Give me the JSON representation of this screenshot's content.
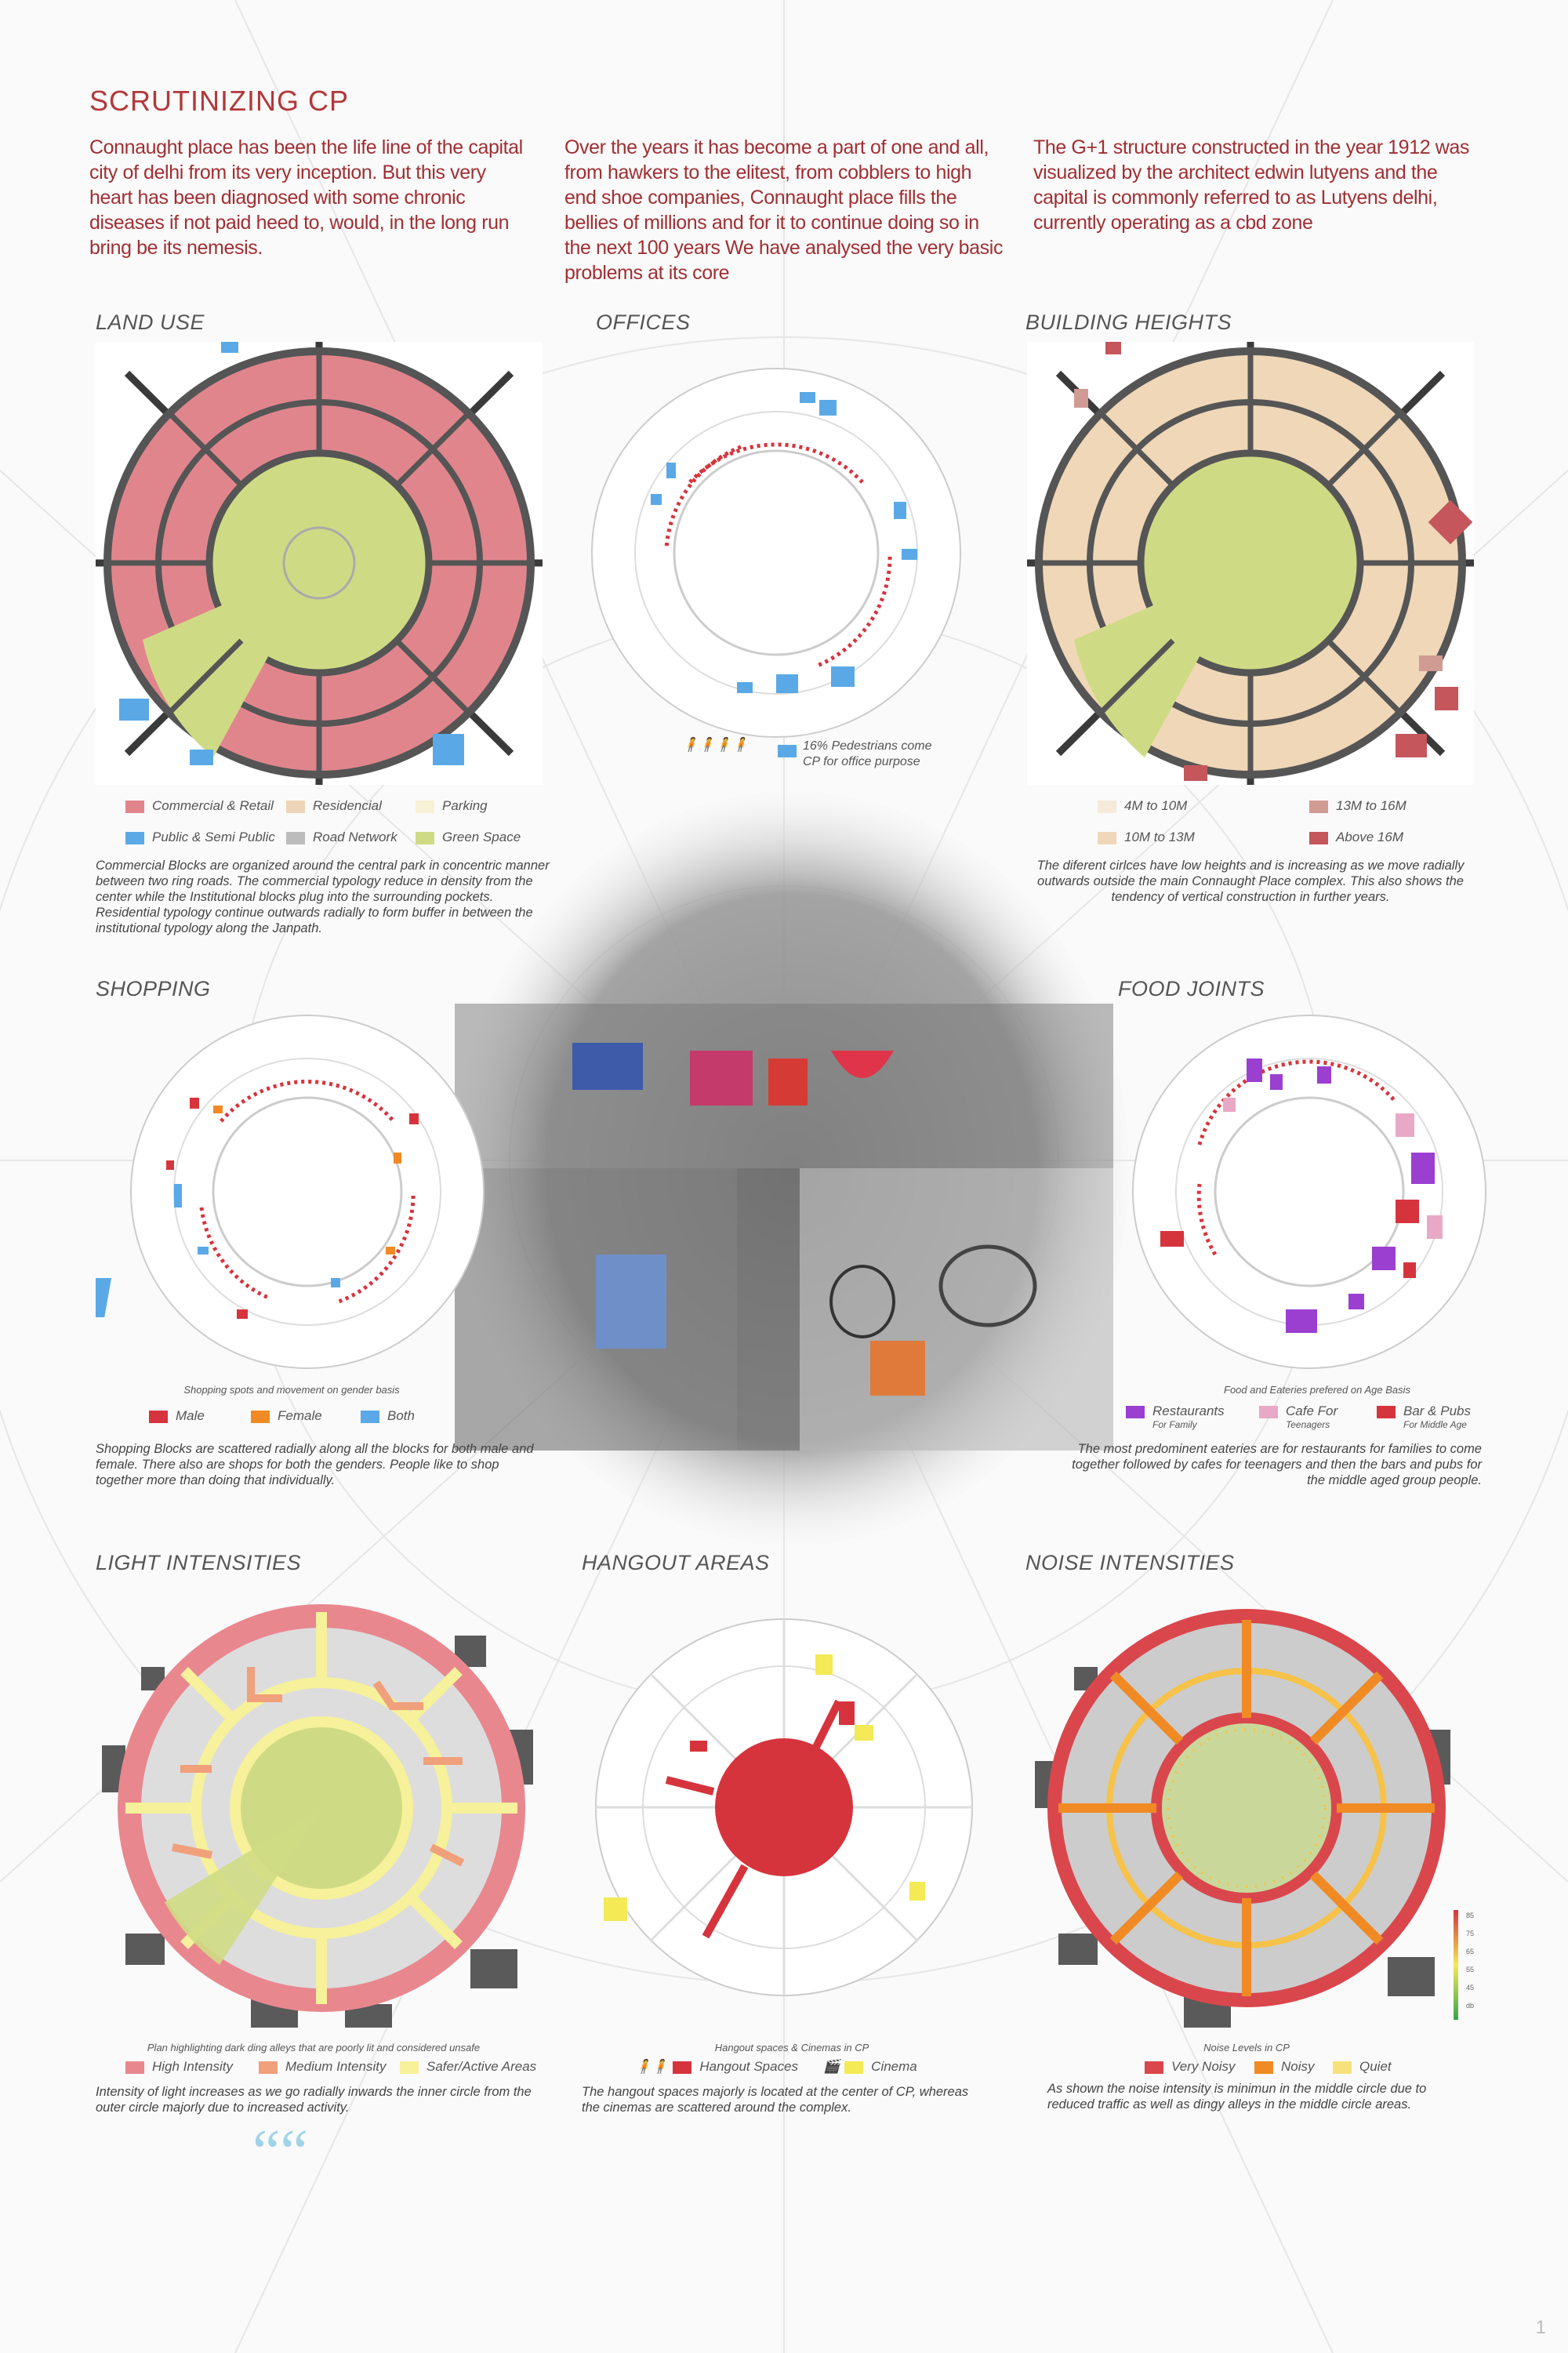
{
  "title": "SCRUTINIZING CP",
  "intro": [
    "Connaught place has been the life line of the capital city of delhi from its very inception. But this very heart has been diagnosed with some chronic diseases if not paid heed to, would, in the long run bring be its nemesis.",
    "Over the years it has become a part of one and all, from hawkers to the elitest, from cobblers to high end shoe companies, Connaught place fills the bellies of millions and  for it to continue doing so in the next 100 years We have analysed the very basic problems at its core",
    "The G+1 structure constructed in the year 1912 was visualized by the architect edwin lutyens and the capital is commonly referred to as Lutyens delhi, currently operating as a cbd zone"
  ],
  "sections": {
    "land_use": {
      "heading": "LAND USE",
      "legend": [
        {
          "label": "Commercial & Retail",
          "color": "#e1858d"
        },
        {
          "label": "Residencial",
          "color": "#eed5b8"
        },
        {
          "label": "Parking",
          "color": "#f7f1d6"
        },
        {
          "label": "Public & Semi Public",
          "color": "#5aa9e6"
        },
        {
          "label": "Road Network",
          "color": "#bcbcbc"
        },
        {
          "label": "Green Space",
          "color": "#cfdb84"
        }
      ],
      "description": "Commercial Blocks are organized around the central park in concentric manner between two ring roads. The commercial typology reduce in density from the center while the Institutional blocks plug into the surrounding pockets. Residential typology continue outwards radially to form buffer in between the institutional typology along the Janpath."
    },
    "offices": {
      "heading": "OFFICES",
      "note": "16% Pedestrians come CP for office purpose",
      "color": "#5aa9e6"
    },
    "building_heights": {
      "heading": "BUILDING HEIGHTS",
      "legend": [
        {
          "label": "4M to 10M",
          "color": "#f6ead8"
        },
        {
          "label": "13M to 16M",
          "color": "#cf9b93"
        },
        {
          "label": "10M to 13M",
          "color": "#efd7b8"
        },
        {
          "label": "Above 16M",
          "color": "#c4565c"
        }
      ],
      "description": "The diferent cirlces have low heights and is increasing as we move radially outwards outside the main Connaught Place complex. This also shows the tendency of vertical construction in further years."
    },
    "shopping": {
      "heading": "SHOPPING",
      "caption": "Shopping spots and movement on gender basis",
      "legend": [
        {
          "label": "Male",
          "color": "#d6343d"
        },
        {
          "label": "Female",
          "color": "#f08a24"
        },
        {
          "label": "Both",
          "color": "#5aa9e6"
        }
      ],
      "description": "Shopping Blocks are scattered radially along all the blocks for both male and female. There also are shops for both the genders. People like to shop together more than doing that individually."
    },
    "food_joints": {
      "heading": "FOOD JOINTS",
      "caption": "Food and Eateries prefered on Age Basis",
      "legend": [
        {
          "label": "Restaurants",
          "sub": "For Family",
          "color": "#9a3fd0"
        },
        {
          "label": "Cafe For",
          "sub": "Teenagers",
          "color": "#e8a9c6"
        },
        {
          "label": "Bar & Pubs",
          "sub": "For Middle Age",
          "color": "#d6343d"
        }
      ],
      "description": "The most predominent eateries are for restaurants for families to come together followed by cafes for teenagers and then the bars and pubs for the middle aged group people."
    },
    "light": {
      "heading": "LIGHT INTENSITIES",
      "caption": "Plan highlighting dark ding alleys that are poorly lit and considered unsafe",
      "legend": [
        {
          "label": "High Intensity",
          "color": "#e9878f"
        },
        {
          "label": "Medium Intensity",
          "color": "#f0a07a"
        },
        {
          "label": "Safer/Active Areas",
          "color": "#f6f19a"
        }
      ],
      "description": "Intensity of light increases as we go radially inwards the inner circle from the outer circle majorly due to increased activity."
    },
    "hangout": {
      "heading": "HANGOUT AREAS",
      "caption": "Hangout spaces & Cinemas in CP",
      "legend": [
        {
          "label": "Hangout Spaces",
          "color": "#d6343d"
        },
        {
          "label": "Cinema",
          "color": "#f3ea56"
        }
      ],
      "description": "The hangout spaces majorly is located at the center of CP, whereas the cinemas are scattered around the complex."
    },
    "noise": {
      "heading": "NOISE INTENSITIES",
      "caption": "Noise Levels in CP",
      "legend": [
        {
          "label": "Very Noisy",
          "color": "#d9474d"
        },
        {
          "label": "Noisy",
          "color": "#f08a24"
        },
        {
          "label": "Quiet",
          "color": "#f6e27a"
        }
      ],
      "scale": [
        "85",
        "75",
        "65",
        "55",
        "45",
        "db"
      ],
      "description": "As shown the noise intensity is minimun in the middle circle due to reduced traffic as well as dingy alleys in the middle circle areas."
    }
  },
  "quote_glyph": "““",
  "page_number": "1"
}
